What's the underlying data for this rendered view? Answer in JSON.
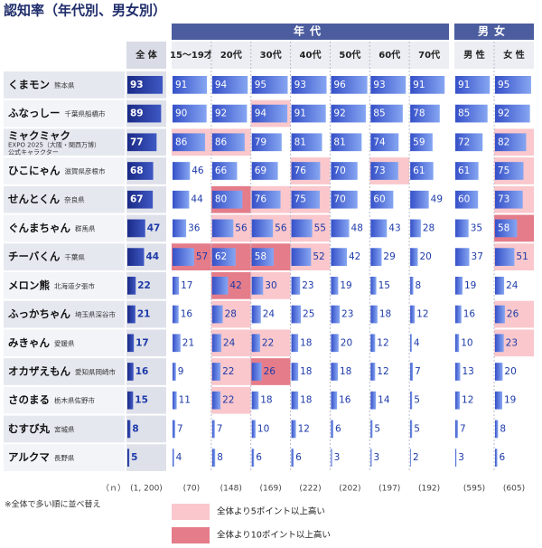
{
  "title": "認知率（年代別、男女別）",
  "group_labels": [
    "年代",
    "男女"
  ],
  "columns": [
    "全 体",
    "15～19才",
    "20代",
    "30代",
    "40代",
    "50代",
    "60代",
    "70代",
    "男 性",
    "女 性"
  ],
  "n_label": "（ｎ）",
  "n": [
    "(1, 200)",
    "(70)",
    "(148)",
    "(169)",
    "(222)",
    "(202)",
    "(197)",
    "(192)",
    "(595)",
    "(605)"
  ],
  "rows": [
    {
      "name": "くまモン",
      "sub": [
        "熊本県"
      ],
      "values": [
        93,
        91,
        94,
        95,
        93,
        96,
        93,
        91,
        91,
        95
      ]
    },
    {
      "name": "ふなっしー",
      "sub": [
        "千葉県船橋市"
      ],
      "values": [
        89,
        90,
        92,
        94,
        91,
        92,
        85,
        78,
        85,
        92
      ]
    },
    {
      "name": "ミャクミャク",
      "sub": [
        "EXPO 2025（大阪・関西万博）",
        "公式キャラクター"
      ],
      "values": [
        77,
        86,
        86,
        79,
        81,
        81,
        74,
        59,
        72,
        82
      ]
    },
    {
      "name": "ひこにゃん",
      "sub": [
        "滋賀県彦根市"
      ],
      "values": [
        68,
        46,
        66,
        69,
        76,
        70,
        73,
        61,
        61,
        75
      ]
    },
    {
      "name": "せんとくん",
      "sub": [
        "奈良県"
      ],
      "values": [
        67,
        44,
        80,
        76,
        75,
        70,
        60,
        49,
        60,
        73
      ]
    },
    {
      "name": "ぐんまちゃん",
      "sub": [
        "群馬県"
      ],
      "values": [
        47,
        36,
        56,
        56,
        55,
        48,
        43,
        28,
        35,
        58
      ]
    },
    {
      "name": "チーバくん",
      "sub": [
        "千葉県"
      ],
      "values": [
        44,
        57,
        62,
        58,
        52,
        42,
        29,
        20,
        37,
        51
      ]
    },
    {
      "name": "メロン熊",
      "sub": [
        "北海道夕張市"
      ],
      "values": [
        22,
        17,
        42,
        30,
        23,
        19,
        15,
        8,
        19,
        24
      ]
    },
    {
      "name": "ふっかちゃん",
      "sub": [
        "埼玉県深谷市"
      ],
      "values": [
        21,
        16,
        28,
        24,
        25,
        23,
        18,
        12,
        16,
        26
      ]
    },
    {
      "name": "みきゃん",
      "sub": [
        "愛媛県"
      ],
      "values": [
        17,
        21,
        24,
        22,
        18,
        20,
        12,
        4,
        10,
        23
      ]
    },
    {
      "name": "オカザえもん",
      "sub": [
        "愛知県岡崎市"
      ],
      "values": [
        16,
        9,
        22,
        26,
        18,
        18,
        12,
        7,
        13,
        20
      ]
    },
    {
      "name": "さのまる",
      "sub": [
        "栃木県佐野市"
      ],
      "values": [
        15,
        11,
        22,
        18,
        18,
        16,
        14,
        5,
        12,
        19
      ]
    },
    {
      "name": "むすび丸",
      "sub": [
        "宮城県"
      ],
      "values": [
        8,
        7,
        7,
        10,
        12,
        6,
        5,
        5,
        7,
        8
      ]
    },
    {
      "name": "アルクマ",
      "sub": [
        "長野県"
      ],
      "values": [
        5,
        4,
        8,
        6,
        6,
        3,
        3,
        2,
        3,
        6
      ]
    }
  ],
  "note": "※全体で多い順に並べ替え",
  "legend": [
    {
      "label": "全体より5ポイント以上高い",
      "color": "#f9c7cc",
      "threshold": 5
    },
    {
      "label": "全体より10ポイント以上高い",
      "color": "#e57c8a",
      "threshold": 10
    }
  ]
}
